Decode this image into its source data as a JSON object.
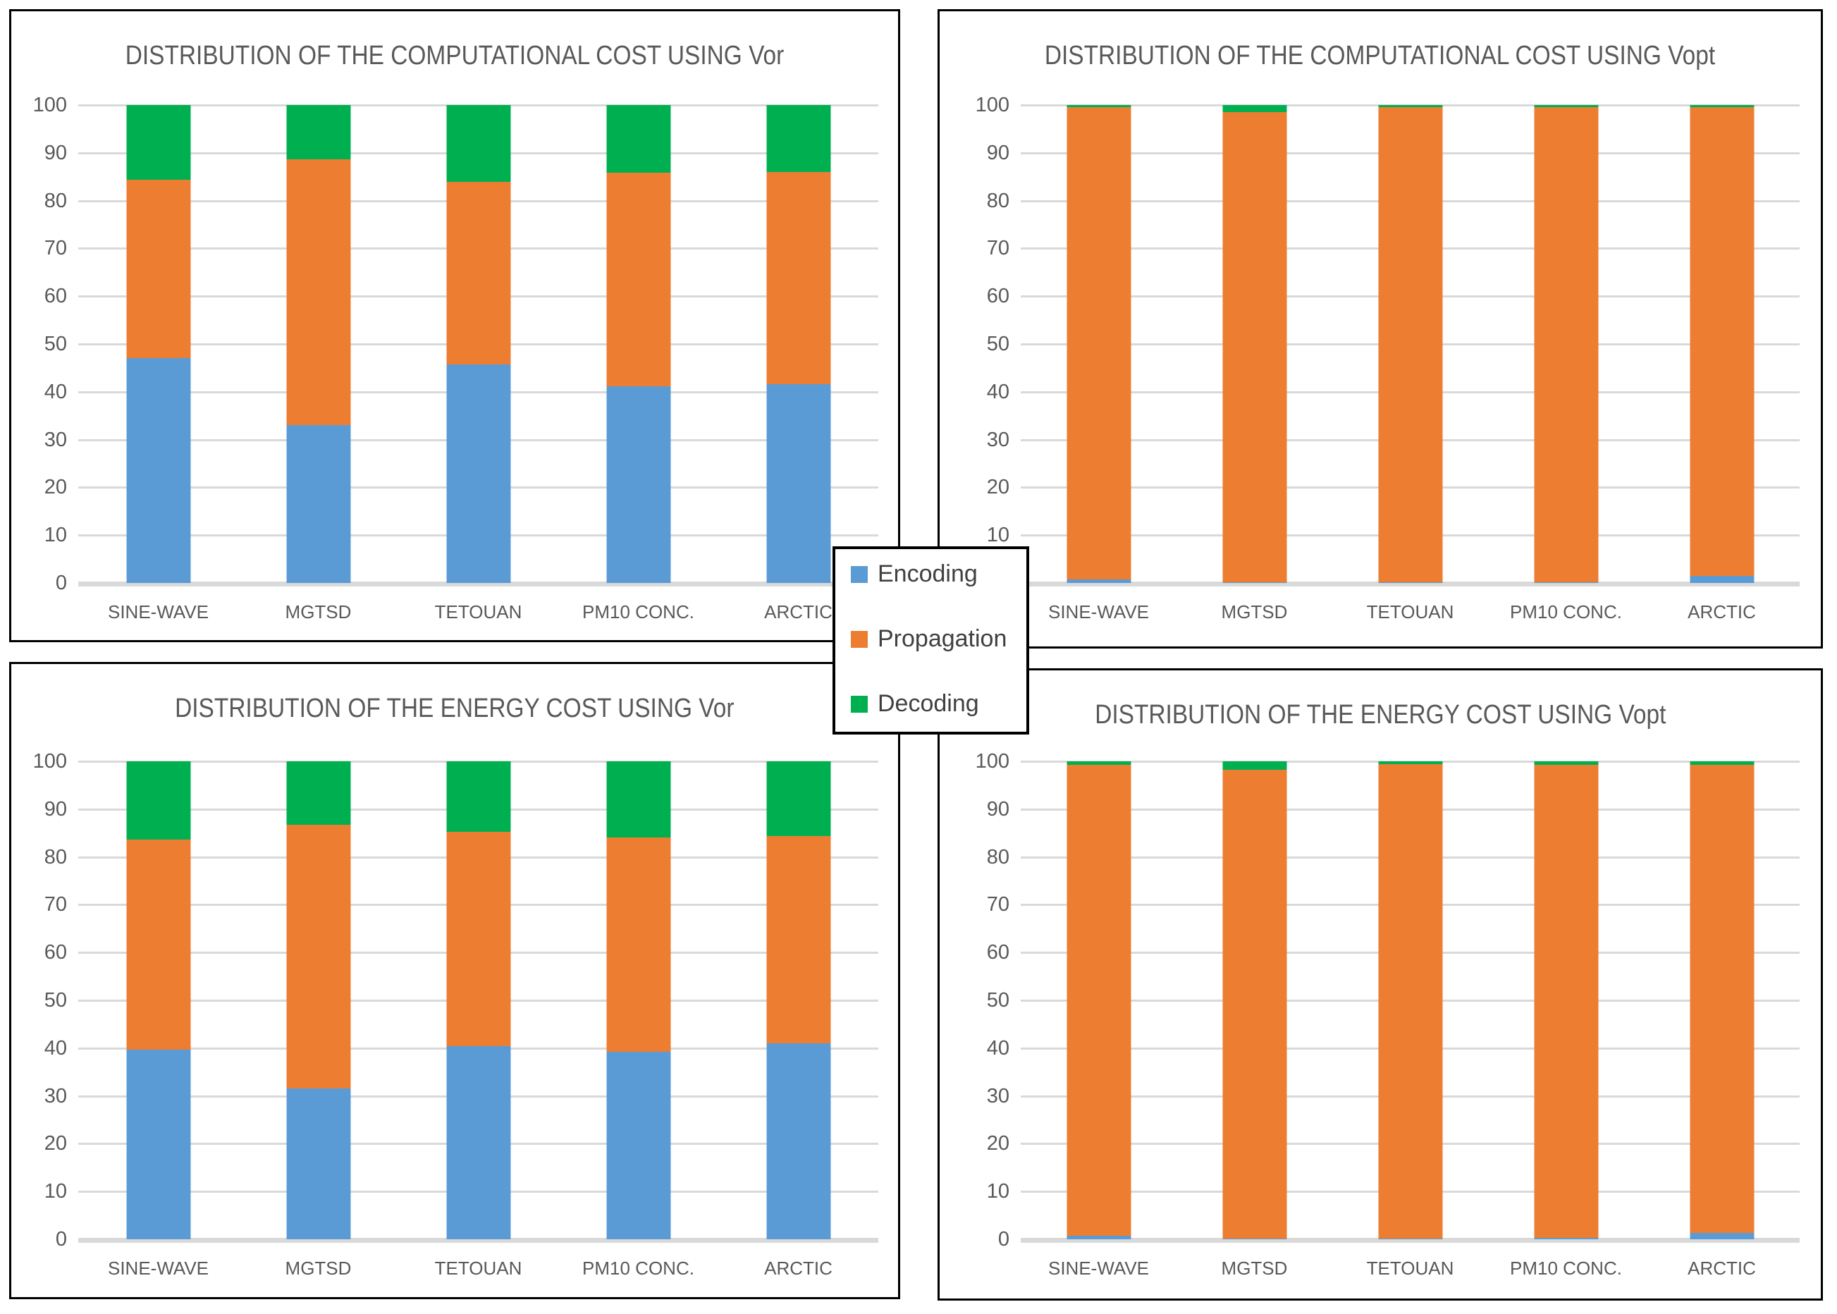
{
  "palette": {
    "encoding": "#5B9BD5",
    "propagation": "#ED7D31",
    "decoding": "#00B050",
    "gridline": "#D9D9D9",
    "axis_text": "#595959",
    "title_text": "#595959",
    "legend_text": "#404040",
    "box_border": "#000000"
  },
  "legend": {
    "items": [
      {
        "label": "Encoding",
        "color": "#5B9BD5"
      },
      {
        "label": "Propagation",
        "color": "#ED7D31"
      },
      {
        "label": "Decoding",
        "color": "#00B050"
      }
    ]
  },
  "chart_data": [
    {
      "id": "computational-vor",
      "type": "bar",
      "stacked": true,
      "title": "DISTRIBUTION OF THE COMPUTATIONAL COST USING Vor",
      "categories": [
        "SINE-WAVE",
        "MGTSD",
        "TETOUAN",
        "PM10 CONC.",
        "ARCTIC"
      ],
      "series": [
        {
          "name": "Encoding",
          "color": "#5B9BD5",
          "values": [
            47.0,
            33.0,
            45.7,
            41.2,
            41.6
          ]
        },
        {
          "name": "Propagation",
          "color": "#ED7D31",
          "values": [
            37.3,
            55.6,
            38.2,
            44.7,
            44.4
          ]
        },
        {
          "name": "Decoding",
          "color": "#00B050",
          "values": [
            15.7,
            11.4,
            16.1,
            14.1,
            14.0
          ]
        }
      ],
      "ylim": [
        0,
        100
      ],
      "yticks": [
        0,
        10,
        20,
        30,
        40,
        50,
        60,
        70,
        80,
        90,
        100
      ],
      "grid": true,
      "legend_position": "center-overlay"
    },
    {
      "id": "computational-vopt",
      "type": "bar",
      "stacked": true,
      "title": "DISTRIBUTION OF THE COMPUTATIONAL COST USING Vopt",
      "categories": [
        "SINE-WAVE",
        "MGTSD",
        "TETOUAN",
        "PM10 CONC.",
        "ARCTIC"
      ],
      "series": [
        {
          "name": "Encoding",
          "color": "#5B9BD5",
          "values": [
            0.8,
            0.2,
            0.2,
            0.2,
            1.5
          ]
        },
        {
          "name": "Propagation",
          "color": "#ED7D31",
          "values": [
            98.7,
            98.3,
            99.3,
            99.3,
            98.0
          ]
        },
        {
          "name": "Decoding",
          "color": "#00B050",
          "values": [
            0.5,
            1.5,
            0.5,
            0.5,
            0.5
          ]
        }
      ],
      "ylim": [
        0,
        100
      ],
      "yticks": [
        0,
        10,
        20,
        30,
        40,
        50,
        60,
        70,
        80,
        90,
        100
      ],
      "grid": true,
      "legend_position": "center-overlay"
    },
    {
      "id": "energy-vor",
      "type": "bar",
      "stacked": true,
      "title": "DISTRIBUTION OF THE ENERGY COST USING Vor",
      "categories": [
        "SINE-WAVE",
        "MGTSD",
        "TETOUAN",
        "PM10 CONC.",
        "ARCTIC"
      ],
      "series": [
        {
          "name": "Encoding",
          "color": "#5B9BD5",
          "values": [
            39.7,
            31.6,
            40.4,
            39.3,
            41.0
          ]
        },
        {
          "name": "Propagation",
          "color": "#ED7D31",
          "values": [
            44.0,
            55.2,
            44.8,
            44.8,
            43.4
          ]
        },
        {
          "name": "Decoding",
          "color": "#00B050",
          "values": [
            16.3,
            13.2,
            14.8,
            15.9,
            15.6
          ]
        }
      ],
      "ylim": [
        0,
        100
      ],
      "yticks": [
        0,
        10,
        20,
        30,
        40,
        50,
        60,
        70,
        80,
        90,
        100
      ],
      "grid": true,
      "legend_position": "center-overlay"
    },
    {
      "id": "energy-vopt",
      "type": "bar",
      "stacked": true,
      "title": "DISTRIBUTION OF THE ENERGY COST USING Vopt",
      "categories": [
        "SINE-WAVE",
        "MGTSD",
        "TETOUAN",
        "PM10 CONC.",
        "ARCTIC"
      ],
      "series": [
        {
          "name": "Encoding",
          "color": "#5B9BD5",
          "values": [
            0.8,
            0.2,
            0.2,
            0.3,
            1.3
          ]
        },
        {
          "name": "Propagation",
          "color": "#ED7D31",
          "values": [
            98.4,
            98.0,
            99.2,
            98.9,
            97.9
          ]
        },
        {
          "name": "Decoding",
          "color": "#00B050",
          "values": [
            0.8,
            1.8,
            0.6,
            0.8,
            0.8
          ]
        }
      ],
      "ylim": [
        0,
        100
      ],
      "yticks": [
        0,
        10,
        20,
        30,
        40,
        50,
        60,
        70,
        80,
        90,
        100
      ],
      "grid": true,
      "legend_position": "center-overlay"
    }
  ]
}
